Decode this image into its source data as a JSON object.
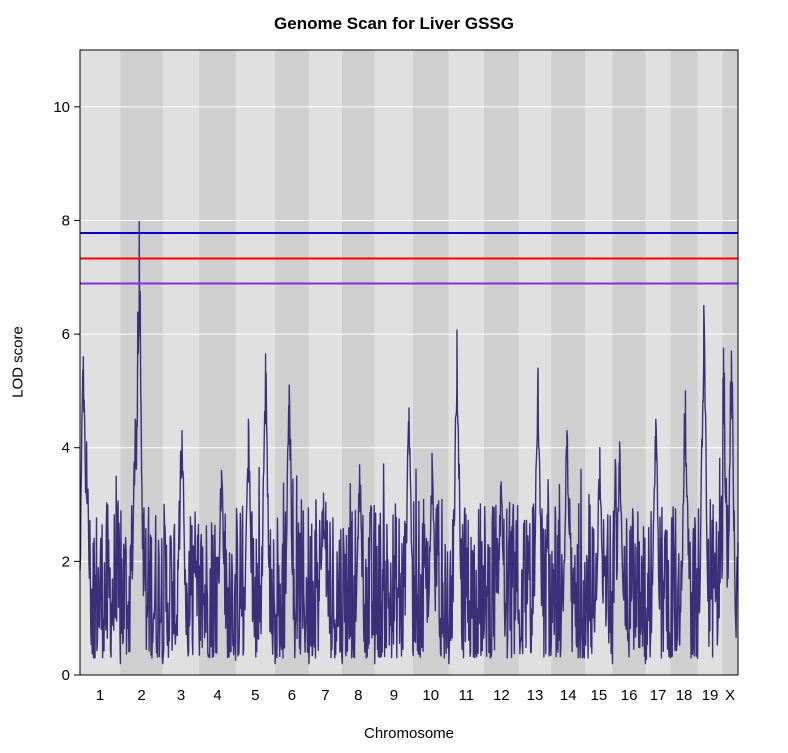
{
  "chart_data": {
    "type": "line",
    "title": "Genome Scan for Liver GSSG",
    "xlabel": "Chromosome",
    "ylabel": "LOD score",
    "ylim": [
      0,
      11
    ],
    "y_ticks": [
      0,
      2,
      4,
      6,
      8,
      10
    ],
    "grid": true,
    "chromosomes": [
      {
        "label": "1",
        "start": 0.0,
        "end": 0.061
      },
      {
        "label": "2",
        "start": 0.061,
        "end": 0.126
      },
      {
        "label": "3",
        "start": 0.126,
        "end": 0.181
      },
      {
        "label": "4",
        "start": 0.181,
        "end": 0.237
      },
      {
        "label": "5",
        "start": 0.237,
        "end": 0.296
      },
      {
        "label": "6",
        "start": 0.296,
        "end": 0.348
      },
      {
        "label": "7",
        "start": 0.348,
        "end": 0.398
      },
      {
        "label": "8",
        "start": 0.398,
        "end": 0.448
      },
      {
        "label": "9",
        "start": 0.448,
        "end": 0.506
      },
      {
        "label": "10",
        "start": 0.506,
        "end": 0.56
      },
      {
        "label": "11",
        "start": 0.56,
        "end": 0.614
      },
      {
        "label": "12",
        "start": 0.614,
        "end": 0.667
      },
      {
        "label": "13",
        "start": 0.667,
        "end": 0.716
      },
      {
        "label": "14",
        "start": 0.716,
        "end": 0.768
      },
      {
        "label": "15",
        "start": 0.768,
        "end": 0.809
      },
      {
        "label": "16",
        "start": 0.809,
        "end": 0.86
      },
      {
        "label": "17",
        "start": 0.86,
        "end": 0.897
      },
      {
        "label": "18",
        "start": 0.897,
        "end": 0.939
      },
      {
        "label": "19",
        "start": 0.939,
        "end": 0.976
      },
      {
        "label": "X",
        "start": 0.976,
        "end": 1.0
      }
    ],
    "thresholds": [
      {
        "value": 7.78,
        "color": "#0000cc"
      },
      {
        "value": 7.33,
        "color": "#ff0000"
      },
      {
        "value": 6.89,
        "color": "#8a2be2"
      }
    ],
    "peaks": [
      {
        "chr": "1",
        "pos": 0.005,
        "lod": 5.6
      },
      {
        "chr": "1",
        "pos": 0.01,
        "lod": 4.1
      },
      {
        "chr": "2",
        "pos": 0.09,
        "lod": 7.98
      },
      {
        "chr": "2",
        "pos": 0.084,
        "lod": 4.5
      },
      {
        "chr": "3",
        "pos": 0.155,
        "lod": 4.3
      },
      {
        "chr": "4",
        "pos": 0.215,
        "lod": 3.6
      },
      {
        "chr": "5",
        "pos": 0.256,
        "lod": 4.5
      },
      {
        "chr": "5",
        "pos": 0.282,
        "lod": 5.65
      },
      {
        "chr": "6",
        "pos": 0.318,
        "lod": 5.1
      },
      {
        "chr": "7",
        "pos": 0.37,
        "lod": 3.2
      },
      {
        "chr": "8",
        "pos": 0.425,
        "lod": 3.7
      },
      {
        "chr": "9",
        "pos": 0.5,
        "lod": 4.7
      },
      {
        "chr": "10",
        "pos": 0.535,
        "lod": 3.9
      },
      {
        "chr": "11",
        "pos": 0.573,
        "lod": 6.07
      },
      {
        "chr": "12",
        "pos": 0.64,
        "lod": 3.4
      },
      {
        "chr": "13",
        "pos": 0.696,
        "lod": 5.4
      },
      {
        "chr": "14",
        "pos": 0.74,
        "lod": 4.3
      },
      {
        "chr": "15",
        "pos": 0.79,
        "lod": 4.0
      },
      {
        "chr": "16",
        "pos": 0.82,
        "lod": 4.1
      },
      {
        "chr": "17",
        "pos": 0.875,
        "lod": 4.5
      },
      {
        "chr": "18",
        "pos": 0.92,
        "lod": 5.0
      },
      {
        "chr": "19",
        "pos": 0.948,
        "lod": 6.5
      },
      {
        "chr": "X",
        "pos": 0.978,
        "lod": 5.75
      },
      {
        "chr": "X",
        "pos": 0.99,
        "lod": 5.7
      }
    ],
    "line_color": "#3b2f7a"
  }
}
